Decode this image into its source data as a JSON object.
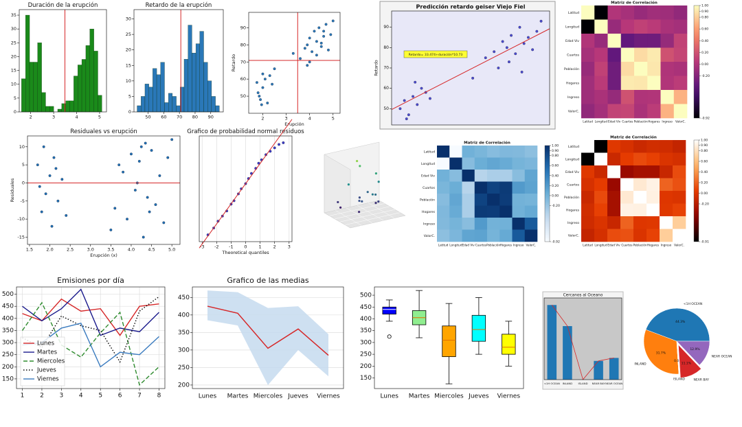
{
  "chart_data": [
    {
      "type": "histogram",
      "title": "Duración de la erupción",
      "color": "#1a8a1a",
      "bins": [
        1.6,
        1.775,
        1.95,
        2.125,
        2.3,
        2.475,
        2.65,
        2.825,
        3.0,
        3.175,
        3.35,
        3.525,
        3.7,
        3.875,
        4.05,
        4.225,
        4.4,
        4.575,
        4.75,
        4.925,
        5.1
      ],
      "counts": [
        12,
        35,
        18,
        18,
        25,
        7,
        2,
        2,
        0,
        1,
        3,
        4,
        4,
        13,
        17,
        19,
        24,
        30,
        22,
        6
      ],
      "xlim": [
        1.5,
        5.3
      ],
      "ylim": [
        0,
        37
      ],
      "xticks": [
        2,
        3,
        4,
        5
      ],
      "yticks": [
        0,
        5,
        10,
        15,
        20,
        25,
        30,
        35
      ],
      "vline": 3.49
    },
    {
      "type": "histogram",
      "title": "Retardo de la erupción",
      "color": "#2a78b8",
      "bins": [
        43,
        45.5,
        48,
        50.5,
        53,
        55.5,
        58,
        60.5,
        63,
        65.5,
        68,
        70.5,
        73,
        75.5,
        78,
        80.5,
        83,
        85.5,
        88,
        90.5,
        93,
        95.5
      ],
      "counts": [
        2,
        5,
        9,
        8,
        14,
        12,
        16,
        3,
        6,
        5,
        2,
        8,
        17,
        28,
        19,
        22,
        26,
        16,
        10,
        5,
        2
      ],
      "xlim": [
        41,
        98
      ],
      "ylim": [
        0,
        33
      ],
      "xticks": [
        50,
        60,
        70,
        80,
        90
      ],
      "yticks": [
        0,
        5,
        10,
        15,
        20,
        25,
        30
      ],
      "vline": 70.9
    },
    {
      "type": "scatter",
      "xlabel": "Erupción",
      "ylabel": "Retardo",
      "color": "#2a78b8",
      "x": [
        1.8,
        1.9,
        2.0,
        2.1,
        2.2,
        1.75,
        1.95,
        2.3,
        2.4,
        1.85,
        2.0,
        3.6,
        3.8,
        3.9,
        4.0,
        4.1,
        4.2,
        4.3,
        4.4,
        4.5,
        4.6,
        4.7,
        4.8,
        4.9,
        5.0,
        4.0,
        4.3,
        4.5,
        3.9,
        4.6,
        2.5,
        3.3
      ],
      "y": [
        52,
        48,
        55,
        60,
        46,
        58,
        45,
        62,
        57,
        50,
        63,
        72,
        78,
        80,
        84,
        76,
        88,
        82,
        90,
        79,
        85,
        92,
        77,
        86,
        94,
        70,
        74,
        81,
        68,
        88,
        66,
        75
      ],
      "xlim": [
        1.4,
        5.3
      ],
      "ylim": [
        40,
        99
      ],
      "xticks": [
        2,
        3,
        4,
        5
      ],
      "yticks": [
        50,
        60,
        70,
        80,
        90
      ],
      "vline": 3.49,
      "hline": 70.9
    },
    {
      "type": "scatter",
      "title": "Predicción retardo geiser Viejo Fiel",
      "ylabel": "Retardo",
      "color": "#4a4ad0",
      "background": "#e8e8f8",
      "x": [
        1.7,
        1.8,
        1.9,
        2.0,
        2.1,
        2.2,
        2.3,
        1.85,
        2.05,
        2.4,
        3.4,
        3.7,
        3.9,
        4.0,
        4.1,
        4.2,
        4.3,
        4.4,
        4.5,
        4.6,
        4.7,
        4.8,
        4.9,
        5.0,
        4.25,
        4.55
      ],
      "y": [
        50,
        54,
        47,
        56,
        52,
        60,
        58,
        45,
        63,
        55,
        65,
        75,
        78,
        70,
        83,
        80,
        86,
        77,
        90,
        82,
        85,
        79,
        88,
        93,
        73,
        68
      ],
      "xlim": [
        1.5,
        5.2
      ],
      "ylim": [
        42,
        98
      ],
      "yticks": [
        50,
        60,
        70,
        80,
        90
      ],
      "fit": {
        "intercept": 33.474,
        "slope": 10.73
      },
      "annotation": "Retardo= 33.474+duración*10.73"
    },
    {
      "type": "heatmap",
      "title": "Matriz de Correlación",
      "cmap": "magma",
      "clim": [
        -0.92,
        1
      ],
      "labels": [
        "Latitud",
        "Longitud",
        "Edad Viv",
        "Cuartos",
        "Población",
        "Hogares",
        "Ingreso",
        "ValorC."
      ],
      "matrix": [
        [
          1,
          -0.92,
          0.01,
          -0.04,
          -0.11,
          -0.07,
          -0.08,
          -0.14
        ],
        [
          -0.92,
          1,
          -0.11,
          0.04,
          0.1,
          0.06,
          -0.02,
          -0.05
        ],
        [
          0.01,
          -0.11,
          1,
          -0.36,
          -0.3,
          -0.3,
          -0.12,
          0.11
        ],
        [
          -0.04,
          0.04,
          -0.36,
          1,
          0.86,
          0.92,
          0.2,
          0.13
        ],
        [
          -0.11,
          0.1,
          -0.3,
          0.86,
          1,
          0.91,
          0,
          -0.02
        ],
        [
          -0.07,
          0.06,
          -0.3,
          0.92,
          0.91,
          1,
          0.01,
          0.07
        ],
        [
          -0.08,
          -0.02,
          -0.12,
          0.2,
          0,
          0.01,
          1,
          0.69
        ],
        [
          -0.14,
          -0.05,
          0.11,
          0.13,
          -0.02,
          0.07,
          0.69,
          1
        ]
      ],
      "cticks": [
        {
          "value": 1,
          "label": "1.00"
        },
        {
          "value": 0.9,
          "label": "0.90"
        },
        {
          "value": 0.8,
          "label": "0.80"
        },
        {
          "value": 0.6,
          "label": "0.60"
        },
        {
          "value": 0.4,
          "label": "0.40"
        },
        {
          "value": 0.2,
          "label": "0.20"
        },
        {
          "value": 0,
          "label": "0.00"
        },
        {
          "value": -0.2,
          "label": "-0.20"
        },
        {
          "value": -0.92,
          "label": "-0.92"
        }
      ]
    },
    {
      "type": "scatter",
      "title": "Residuales vs erupción",
      "xlabel": "Erupción (x)",
      "ylabel": "Residuales",
      "color": "#1f6fb4",
      "x": [
        1.7,
        1.8,
        1.85,
        1.9,
        2.0,
        2.05,
        2.1,
        2.2,
        2.3,
        2.4,
        1.75,
        2.15,
        3.5,
        3.6,
        3.8,
        3.9,
        4.0,
        4.1,
        4.2,
        4.3,
        4.35,
        4.4,
        4.5,
        4.6,
        4.7,
        4.8,
        4.9,
        5.0,
        4.15,
        4.45,
        3.7,
        4.25
      ],
      "y": [
        5,
        -8,
        10,
        -3,
        2,
        -12,
        7,
        -5,
        1,
        -9,
        -1,
        4,
        -13,
        -7,
        3,
        -10,
        8,
        -2,
        6,
        -15,
        11,
        -4,
        9,
        -6,
        2,
        -11,
        7,
        12,
        0,
        -8,
        5,
        10
      ],
      "xlim": [
        1.45,
        5.2
      ],
      "ylim": [
        -17,
        13
      ],
      "xticks": [
        1.5,
        {
          "value": 2,
          "label": "2.0"
        },
        2.5,
        {
          "value": 3,
          "label": "3.0"
        },
        3.5,
        {
          "value": 4,
          "label": "4.0"
        },
        4.5,
        {
          "value": 5,
          "label": "5.0"
        }
      ],
      "yticks": [
        -15,
        -10,
        -5,
        0,
        5,
        10
      ],
      "hline": 0
    },
    {
      "type": "scatter",
      "title": "Grafico de probabilidad normal residuos",
      "xlabel": "Theoretical quantiles",
      "color": "#3a3ac8",
      "grid": true,
      "x": [
        -2.6,
        -2.2,
        -1.9,
        -1.6,
        -1.3,
        -1.0,
        -0.8,
        -0.5,
        -0.3,
        0,
        0.2,
        0.4,
        0.7,
        0.9,
        1.1,
        1.4,
        1.7,
        2.0,
        2.3,
        2.6
      ],
      "y": [
        -15,
        -13,
        -11,
        -9.5,
        -8,
        -6,
        -5,
        -3,
        -1.5,
        0,
        1.5,
        3,
        4.5,
        6,
        7,
        8.5,
        9.5,
        10.5,
        11.5,
        12
      ],
      "xlim": [
        -3.2,
        3.2
      ],
      "ylim": [
        -17,
        14
      ],
      "xticks": [
        -3,
        -2,
        -1,
        0,
        1,
        2,
        3
      ],
      "fit": {
        "intercept": 0,
        "slope": 5.9
      }
    },
    {
      "type": "scatter3d",
      "cmap": "viridis",
      "x": [
        2,
        3,
        4,
        5,
        6,
        7,
        8,
        3,
        5,
        6,
        7,
        4,
        2,
        8,
        5,
        6
      ],
      "y": [
        1,
        3,
        5,
        2,
        4,
        6,
        3,
        7,
        8,
        1,
        5,
        6,
        2,
        4,
        3,
        7
      ],
      "z": [
        100,
        300,
        150,
        500,
        200,
        120,
        350,
        80,
        250,
        420,
        90,
        160,
        60,
        280,
        140,
        220
      ],
      "xlim": [
        0,
        10
      ],
      "ylim": [
        0,
        10
      ],
      "zlim": [
        0,
        600
      ]
    },
    {
      "type": "heatmap",
      "title": "Matriz de Correlación",
      "cmap": "Blues",
      "clim": [
        -0.92,
        1
      ],
      "labels": [
        "Latitud",
        "Longitud",
        "Edad Viv",
        "Cuartos",
        "Población",
        "Hogares",
        "Ingreso",
        "ValorC."
      ],
      "matrix": [
        [
          1,
          -0.92,
          0.01,
          -0.04,
          -0.11,
          -0.07,
          -0.08,
          -0.14
        ],
        [
          -0.92,
          1,
          -0.11,
          0.04,
          0.1,
          0.06,
          -0.02,
          -0.05
        ],
        [
          0.01,
          -0.11,
          1,
          -0.36,
          -0.3,
          -0.3,
          -0.12,
          0.11
        ],
        [
          -0.04,
          0.04,
          -0.36,
          1,
          0.86,
          0.92,
          0.2,
          0.13
        ],
        [
          -0.11,
          0.1,
          -0.3,
          0.86,
          1,
          0.91,
          0,
          -0.02
        ],
        [
          -0.07,
          0.06,
          -0.3,
          0.92,
          0.91,
          1,
          0.01,
          0.07
        ],
        [
          -0.08,
          -0.02,
          -0.12,
          0.2,
          0,
          0.01,
          1,
          0.69
        ],
        [
          -0.14,
          -0.05,
          0.11,
          0.13,
          -0.02,
          0.07,
          0.69,
          1
        ]
      ],
      "cticks": [
        {
          "value": 1,
          "label": "1.00"
        },
        {
          "value": 0.9,
          "label": "0.90"
        },
        {
          "value": 0.8,
          "label": "0.80"
        },
        {
          "value": 0.6,
          "label": "0.60"
        },
        {
          "value": 0.4,
          "label": "0.40"
        },
        {
          "value": 0.2,
          "label": "0.20"
        },
        {
          "value": 0,
          "label": "0.00"
        },
        {
          "value": -0.2,
          "label": "-0.20"
        },
        {
          "value": -0.92,
          "label": "-0.92"
        }
      ]
    },
    {
      "type": "heatmap",
      "title": "Matriz de Correlación",
      "cmap": "gist_heat",
      "clim": [
        -0.91,
        1
      ],
      "labels": [
        "Latitud",
        "Longitud",
        "Edad Viv",
        "Cuartos",
        "Población",
        "Hogares",
        "Ingreso",
        "ValorC."
      ],
      "matrix": [
        [
          1,
          -0.92,
          0.01,
          -0.04,
          -0.11,
          -0.07,
          -0.08,
          -0.14
        ],
        [
          -0.92,
          1,
          -0.11,
          0.04,
          0.1,
          0.06,
          -0.02,
          -0.05
        ],
        [
          0.01,
          -0.11,
          1,
          -0.36,
          -0.3,
          -0.3,
          -0.12,
          0.11
        ],
        [
          -0.04,
          0.04,
          -0.36,
          1,
          0.86,
          0.92,
          0.2,
          0.13
        ],
        [
          -0.11,
          0.1,
          -0.3,
          0.86,
          1,
          0.91,
          0,
          -0.02
        ],
        [
          -0.07,
          0.06,
          -0.3,
          0.92,
          0.91,
          1,
          0.01,
          0.07
        ],
        [
          -0.08,
          -0.02,
          -0.12,
          0.2,
          0,
          0.01,
          1,
          0.69
        ],
        [
          -0.14,
          -0.05,
          0.11,
          0.13,
          -0.02,
          0.07,
          0.69,
          1
        ]
      ],
      "cticks": [
        {
          "value": 1,
          "label": "1.00"
        },
        {
          "value": 0.9,
          "label": "0.90"
        },
        {
          "value": 0.8,
          "label": "0.80"
        },
        {
          "value": 0.6,
          "label": "0.60"
        },
        {
          "value": 0.4,
          "label": "0.40"
        },
        {
          "value": 0.2,
          "label": "0.20"
        },
        {
          "value": 0,
          "label": "0.00"
        },
        {
          "value": -0.2,
          "label": "-0.20"
        },
        {
          "value": -0.91,
          "label": "-0.91"
        }
      ]
    },
    {
      "type": "line",
      "title": "Emisiones por día",
      "grid": true,
      "legend": "lower left",
      "x": [
        1,
        2,
        3,
        4,
        5,
        6,
        7,
        8
      ],
      "xlim": [
        0.7,
        8.3
      ],
      "xticks": [
        1,
        2,
        3,
        4,
        5,
        6,
        7,
        8
      ],
      "ylim": [
        110,
        530
      ],
      "yticks": [
        150,
        200,
        250,
        300,
        350,
        400,
        450,
        500
      ],
      "series": [
        {
          "name": "Lunes",
          "color": "#d62728",
          "dash": "solid",
          "values": [
            420,
            390,
            480,
            430,
            440,
            330,
            450,
            460
          ]
        },
        {
          "name": "Martes",
          "color": "#1a1a8c",
          "dash": "solid",
          "values": [
            450,
            390,
            440,
            520,
            330,
            360,
            345,
            425
          ]
        },
        {
          "name": "Miercoles",
          "color": "#2e8b2e",
          "dash": "dashed",
          "values": [
            350,
            465,
            290,
            240,
            340,
            425,
            125,
            200
          ]
        },
        {
          "name": "Jueves",
          "color": "#000000",
          "dash": "dotted",
          "values": [
            320,
            280,
            410,
            370,
            350,
            220,
            430,
            490
          ]
        },
        {
          "name": "Viernes",
          "color": "#3a7bbf",
          "dash": "solid",
          "values": [
            290,
            300,
            360,
            380,
            200,
            260,
            250,
            325
          ]
        }
      ]
    },
    {
      "type": "band",
      "title": "Grafico de las medias",
      "grid": true,
      "color": "#d62728",
      "band_color": "#c6dbef",
      "categories": [
        "Lunes",
        "Martes",
        "Miercoles",
        "Jueves",
        "Viernes"
      ],
      "values": [
        425,
        405,
        305,
        360,
        285
      ],
      "lower": [
        385,
        370,
        200,
        300,
        225
      ],
      "upper": [
        470,
        465,
        420,
        425,
        345
      ],
      "ylim": [
        190,
        480
      ],
      "yticks": [
        200,
        250,
        300,
        350,
        400,
        450
      ]
    },
    {
      "type": "boxplot",
      "categories": [
        "Lunes",
        "Martes",
        "Miercoles",
        "Jueves",
        "Viernes"
      ],
      "ylim": [
        105,
        535
      ],
      "yticks": [
        150,
        200,
        250,
        300,
        350,
        400,
        450,
        500
      ],
      "boxes": [
        {
          "min": 390,
          "q1": 420,
          "median": 440,
          "q3": 450,
          "max": 480,
          "outliers": [
            325
          ],
          "color": "#0000ff"
        },
        {
          "min": 320,
          "q1": 375,
          "median": 405,
          "q3": 435,
          "max": 520,
          "outliers": [],
          "color": "#90ee90"
        },
        {
          "min": 125,
          "q1": 240,
          "median": 310,
          "q3": 370,
          "max": 465,
          "outliers": [],
          "color": "#ffa500"
        },
        {
          "min": 250,
          "q1": 305,
          "median": 355,
          "q3": 415,
          "max": 490,
          "outliers": [],
          "color": "#00ffff"
        },
        {
          "min": 200,
          "q1": 250,
          "median": 280,
          "q3": 335,
          "max": 390,
          "outliers": [],
          "color": "#ffff00"
        }
      ]
    },
    {
      "type": "bar",
      "title": "Cercanos al Oceano",
      "color": "#1f77b4",
      "line_color": "#d62728",
      "background": "#c8c8c8",
      "categories": [
        "<1H OCEAN",
        "INLAND",
        "ISLAND",
        "NEAR BAY",
        "NEAR OCEAN"
      ],
      "values": [
        9136,
        6551,
        5,
        2290,
        2658
      ],
      "ylim": [
        0,
        10000
      ]
    },
    {
      "type": "pie",
      "categories": [
        "<1H OCEAN",
        "INLAND",
        "ISLAND",
        "NEAR BAY",
        "NEAR OCEAN"
      ],
      "values": [
        44.3,
        31.7,
        0.0,
        11.1,
        12.9
      ],
      "value_labels": [
        "44.3%",
        "31.7%",
        "0.0%",
        "11.1%",
        "12.9%"
      ],
      "colors": [
        "#1f77b4",
        "#ff7f0e",
        "#2ca02c",
        "#d62728",
        "#9467bd"
      ]
    }
  ]
}
